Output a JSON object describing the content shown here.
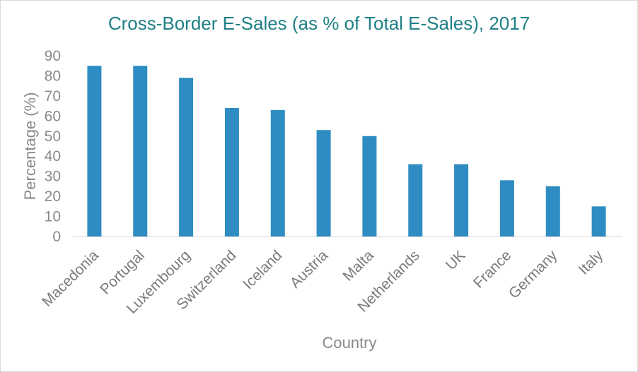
{
  "chart_data": {
    "type": "bar",
    "title": "Cross-Border E-Sales (as % of Total E-Sales), 2017",
    "xlabel": "Country",
    "ylabel": "Percentage (%)",
    "ylim": [
      0,
      90
    ],
    "yticks": [
      0,
      10,
      20,
      30,
      40,
      50,
      60,
      70,
      80,
      90
    ],
    "grid": false,
    "categories": [
      "Macedonia",
      "Portugal",
      "Luxembourg",
      "Switzerland",
      "Iceland",
      "Austria",
      "Malta",
      "Netherlands",
      "UK",
      "France",
      "Germany",
      "Italy"
    ],
    "values": [
      85,
      85,
      79,
      64,
      63,
      53,
      50,
      36,
      36,
      28,
      25,
      15
    ],
    "bar_color": "#2e8cc2"
  }
}
